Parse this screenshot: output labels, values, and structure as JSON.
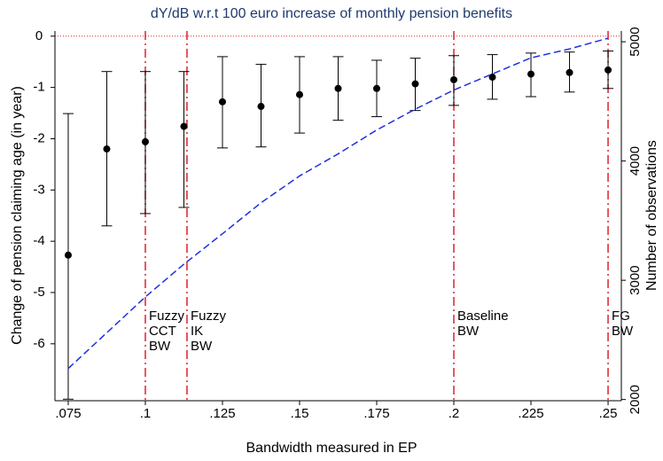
{
  "chart_data": {
    "type": "scatter",
    "title": "dY/dB w.r.t 100 euro increase of monthly pension benefits",
    "x_label": "Bandwidth measured in EP",
    "y_label": "Change of pension claiming age (in year)",
    "y2_label": "Number of observations",
    "x": [
      0.075,
      0.0875,
      0.1,
      0.1125,
      0.125,
      0.1375,
      0.15,
      0.1625,
      0.175,
      0.1875,
      0.2,
      0.2125,
      0.225,
      0.2375,
      0.25
    ],
    "series": [
      {
        "type": "scatter",
        "color": "#000000",
        "values": [
          -4.27,
          -2.2,
          -2.06,
          -1.76,
          -1.28,
          -1.37,
          -1.14,
          -1.02,
          -1.02,
          -0.93,
          -0.85,
          -0.8,
          -0.74,
          -0.71,
          -0.66
        ],
        "low": [
          -7.08,
          -3.7,
          -3.46,
          -3.34,
          -2.18,
          -2.16,
          -1.89,
          -1.64,
          -1.57,
          -1.45,
          -1.35,
          -1.23,
          -1.18,
          -1.09,
          -1.02
        ],
        "high": [
          -1.51,
          -0.69,
          -0.69,
          -0.69,
          -0.4,
          -0.55,
          -0.4,
          -0.4,
          -0.47,
          -0.43,
          -0.38,
          -0.36,
          -0.33,
          -0.31,
          -0.29
        ]
      },
      {
        "type": "line",
        "axis": "y2",
        "color": "#1f2fe0",
        "values": [
          2260,
          2560,
          2860,
          3135,
          3390,
          3650,
          3875,
          4060,
          4260,
          4435,
          4595,
          4730,
          4865,
          4940,
          5030
        ]
      }
    ],
    "xlim": [
      0.0707,
      0.2543
    ],
    "xticks": [
      {
        "value": 0.075,
        "label": ".075"
      },
      {
        "value": 0.1,
        "label": ".1"
      },
      {
        "value": 0.125,
        "label": ".125"
      },
      {
        "value": 0.15,
        "label": ".15"
      },
      {
        "value": 0.175,
        "label": ".175"
      },
      {
        "value": 0.2,
        "label": ".2"
      },
      {
        "value": 0.225,
        "label": ".225"
      },
      {
        "value": 0.25,
        "label": ".25"
      }
    ],
    "ylim": [
      -7.11,
      0.1
    ],
    "yticks": [
      0,
      -1,
      -2,
      -3,
      -4,
      -5,
      -6
    ],
    "y2lim": [
      1990,
      5090
    ],
    "y2ticks": [
      2000,
      3000,
      4000,
      5000
    ],
    "hline": 0,
    "ref_color": "#e0202a",
    "annotations": [
      {
        "x": 0.1,
        "lines": [
          "Fuzzy",
          "CCT",
          "BW"
        ]
      },
      {
        "x": 0.1135,
        "lines": [
          "Fuzzy",
          "IK",
          "BW"
        ]
      },
      {
        "x": 0.2,
        "lines": [
          "Baseline",
          "BW"
        ]
      },
      {
        "x": 0.25,
        "lines": [
          "FG",
          "BW"
        ]
      }
    ]
  }
}
